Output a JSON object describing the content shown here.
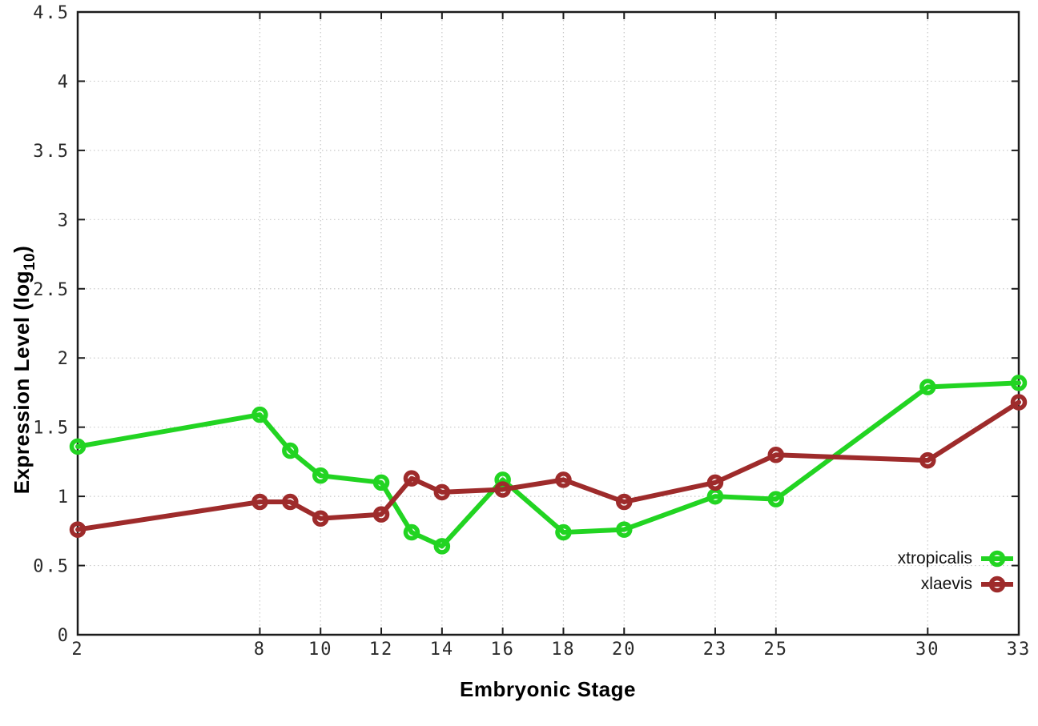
{
  "chart_data": {
    "type": "line",
    "title": "",
    "xlabel": "Embryonic Stage",
    "ylabel": "Expression Level (log10)",
    "ylabel_parts": {
      "pre": "Expression Level (log",
      "sub": "10",
      "post": ")"
    },
    "x": [
      2,
      8,
      9,
      10,
      12,
      13,
      14,
      16,
      18,
      20,
      23,
      25,
      30,
      33
    ],
    "xlim": [
      2,
      33
    ],
    "ylim": [
      0,
      4.5
    ],
    "xticks": [
      2,
      8,
      10,
      12,
      14,
      16,
      18,
      20,
      23,
      25,
      30,
      33
    ],
    "xtick_labels": [
      "2",
      "8",
      "10",
      "12",
      "14",
      "16",
      "18",
      "20",
      "23",
      "25",
      "30",
      "33"
    ],
    "yticks": [
      0,
      0.5,
      1,
      1.5,
      2,
      2.5,
      3,
      3.5,
      4,
      4.5
    ],
    "ytick_labels": [
      "0",
      "0.5",
      "1",
      "1.5",
      "2",
      "2.5",
      "3",
      "3.5",
      "4",
      "4.5"
    ],
    "grid": true,
    "legend_position": "inside-bottom-right",
    "series": [
      {
        "name": "xtropicalis",
        "color": "#22d422",
        "values": [
          1.36,
          1.59,
          1.33,
          1.15,
          1.1,
          0.74,
          0.64,
          1.12,
          0.74,
          0.76,
          1.0,
          0.98,
          1.79,
          1.82
        ]
      },
      {
        "name": "xlaevis",
        "color": "#9e2b2b",
        "values": [
          0.76,
          0.96,
          0.96,
          0.84,
          0.87,
          1.13,
          1.03,
          1.05,
          1.12,
          0.96,
          1.1,
          1.3,
          1.26,
          1.68
        ]
      }
    ]
  },
  "colors": {
    "background": "#ffffff",
    "grid": "#c9c9c9",
    "axis": "#1c1c1c",
    "tick_text": "#2b2b2b",
    "label_text": "#000000"
  }
}
